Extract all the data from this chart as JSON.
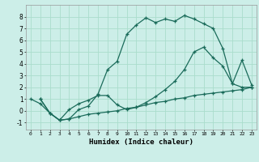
{
  "xlabel": "Humidex (Indice chaleur)",
  "bg_color": "#cceee8",
  "grid_color": "#aaddcc",
  "line_color": "#1a6b5a",
  "xlim": [
    -0.5,
    23.5
  ],
  "ylim": [
    -1.6,
    9.0
  ],
  "xticks": [
    0,
    1,
    2,
    3,
    4,
    5,
    6,
    7,
    8,
    9,
    10,
    11,
    12,
    13,
    14,
    15,
    16,
    17,
    18,
    19,
    20,
    21,
    22,
    23
  ],
  "yticks": [
    -1,
    0,
    1,
    2,
    3,
    4,
    5,
    6,
    7,
    8
  ],
  "line1_x": [
    0,
    1,
    2,
    3,
    4,
    5,
    6,
    7,
    8,
    9,
    10,
    11,
    12,
    13,
    14,
    15,
    16,
    17,
    18,
    19,
    20,
    21,
    22,
    23
  ],
  "line1_y": [
    1.0,
    0.6,
    -0.2,
    -0.8,
    -0.7,
    0.1,
    0.4,
    1.4,
    3.5,
    4.2,
    6.5,
    7.3,
    7.9,
    7.5,
    7.8,
    7.6,
    8.1,
    7.8,
    7.4,
    7.0,
    5.3,
    2.3,
    2.0,
    2.0
  ],
  "line2_x": [
    1,
    2,
    3,
    4,
    5,
    6,
    7,
    8,
    9,
    10,
    11,
    12,
    13,
    14,
    15,
    16,
    17,
    18,
    19,
    20,
    21,
    22,
    23
  ],
  "line2_y": [
    1.0,
    -0.2,
    -0.8,
    -0.7,
    -0.5,
    -0.3,
    -0.2,
    -0.1,
    0.0,
    0.2,
    0.3,
    0.5,
    0.7,
    0.8,
    1.0,
    1.1,
    1.3,
    1.4,
    1.5,
    1.6,
    1.7,
    1.8,
    2.0
  ],
  "line3_x": [
    1,
    2,
    3,
    4,
    5,
    6,
    7,
    8,
    9,
    10,
    11,
    12,
    13,
    14,
    15,
    16,
    17,
    18,
    19,
    20,
    21,
    22,
    23
  ],
  "line3_y": [
    1.0,
    -0.2,
    -0.8,
    0.1,
    0.6,
    0.9,
    1.3,
    1.3,
    0.5,
    0.1,
    0.3,
    0.7,
    1.2,
    1.8,
    2.5,
    3.5,
    5.0,
    5.4,
    4.5,
    3.8,
    2.3,
    4.3,
    2.2
  ]
}
